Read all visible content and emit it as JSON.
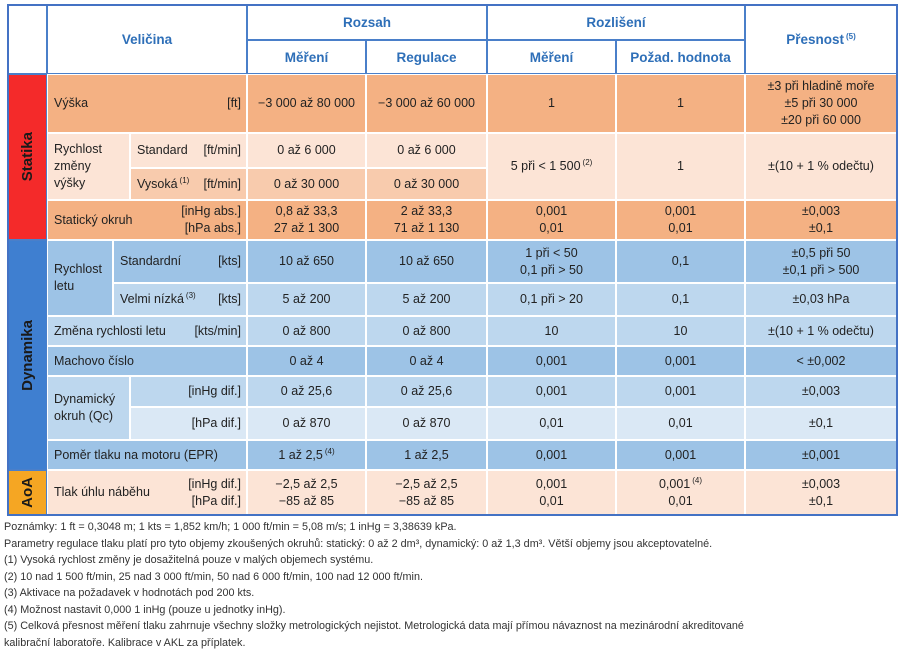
{
  "table": {
    "header": {
      "quantity": "Veličina",
      "range": "Rozsah",
      "resolution": "Rozlišení",
      "accuracy": "Přesnost",
      "accuracy_ref": "(5)",
      "range_measurement": "Měření",
      "range_regulation": "Regulace",
      "resolution_measurement": "Měření",
      "resolution_setpoint": "Požad. hodnota"
    },
    "groups": [
      "Statika",
      "Dynamika",
      "AoA"
    ],
    "rows": [
      {
        "label": "Výška",
        "unit": "[ft]",
        "measurement": "−3 000 až 80 000",
        "regulation": "−3 000 až 60 000",
        "resolution": "1",
        "setpoint": "1",
        "accuracy": [
          "±3 při hladině moře",
          "±5 při 30 000",
          "±20 při 60 000"
        ]
      },
      {
        "label": [
          "Rychlost",
          "změny výšky"
        ],
        "sub": [
          {
            "label": "Standard",
            "unit": "[ft/min]",
            "measurement": "0 až 6 000",
            "regulation": "0 až 6 000"
          },
          {
            "label": "Vysoká",
            "label_ref": "(1)",
            "unit": "[ft/min]",
            "measurement": "0 až 30 000",
            "regulation": "0 až 30 000"
          }
        ],
        "resolution": "5 při < 1 500",
        "resolution_ref": "(2)",
        "setpoint": "1",
        "accuracy": "±(10 + 1 % odečtu)"
      },
      {
        "label": "Statický okruh",
        "unit": [
          "[inHg abs.]",
          "[hPa abs.]"
        ],
        "measurement": [
          "0,8 až 33,3",
          "27 až 1 300"
        ],
        "regulation": [
          "2 až 33,3",
          "71 až 1 130"
        ],
        "resolution": [
          "0,001",
          "0,01"
        ],
        "setpoint": [
          "0,001",
          "0,01"
        ],
        "accuracy": [
          "±0,003",
          "±0,1"
        ]
      },
      {
        "label": [
          "Rychlost",
          "letu"
        ],
        "sub": [
          {
            "label": "Standardní",
            "unit": "[kts]",
            "measurement": "10 až 650",
            "regulation": "10 až 650",
            "resolution": [
              "1 při < 50",
              "0,1 při > 50"
            ],
            "setpoint": "0,1",
            "accuracy": [
              "±0,5 při 50",
              "±0,1 při > 500"
            ]
          },
          {
            "label": "Velmi nízká",
            "label_ref": "(3)",
            "unit": "[kts]",
            "measurement": "5 až 200",
            "regulation": "5 až 200",
            "resolution": "0,1 při > 20",
            "setpoint": "0,1",
            "accuracy": "±0,03 hPa"
          }
        ]
      },
      {
        "label": "Změna rychlosti letu",
        "unit": "[kts/min]",
        "measurement": "0 až 800",
        "regulation": "0 až 800",
        "resolution": "10",
        "setpoint": "10",
        "accuracy": "±(10 + 1 % odečtu)"
      },
      {
        "label": "Machovo číslo",
        "measurement": "0 až 4",
        "regulation": "0 až 4",
        "resolution": "0,001",
        "setpoint": "0,001",
        "accuracy": "< ±0,002"
      },
      {
        "label": [
          "Dynamický",
          "okruh (Qc)"
        ],
        "sub": [
          {
            "unit": "[inHg dif.]",
            "measurement": "0 až 25,6",
            "regulation": "0 až 25,6",
            "resolution": "0,001",
            "setpoint": "0,001",
            "accuracy": "±0,003"
          },
          {
            "unit": "[hPa dif.]",
            "measurement": "0 až 870",
            "regulation": "0 až 870",
            "resolution": "0,01",
            "setpoint": "0,01",
            "accuracy": "±0,1"
          }
        ]
      },
      {
        "label": "Poměr tlaku na motoru (EPR)",
        "measurement": "1 až 2,5",
        "measurement_ref": "(4)",
        "regulation": "1 až 2,5",
        "resolution": "0,001",
        "setpoint": "0,001",
        "accuracy": "±0,001"
      },
      {
        "label": "Tlak úhlu náběhu",
        "unit": [
          "[inHg dif.]",
          "[hPa dif.]"
        ],
        "measurement": [
          "−2,5 až 2,5",
          "−85 až 85"
        ],
        "regulation": [
          "−2,5 až 2,5",
          "−85 až 85"
        ],
        "resolution": [
          "0,001",
          "0,01"
        ],
        "setpoint": [
          "0,001",
          "0,01"
        ],
        "setpoint_ref": "(4)",
        "accuracy": [
          "±0,003",
          "±0,1"
        ]
      }
    ]
  },
  "notes": [
    "Poznámky: 1 ft = 0,3048 m; 1 kts = 1,852 km/h; 1 000 ft/min = 5,08 m/s; 1 inHg = 3,38639 kPa.",
    "Parametry regulace tlaku platí pro tyto objemy zkoušených okruhů: statický: 0 až 2 dm³, dynamický: 0 až 1,3 dm³. Větší objemy jsou akceptovatelné.",
    "(1) Vysoká rychlost změny je dosažitelná pouze v malých objemech systému.",
    "(2) 10 nad 1 500 ft/min, 25 nad 3 000 ft/min, 50 nad 6 000 ft/min, 100 nad 12 000 ft/min.",
    "(3) Aktivace na požadavek v hodnotách pod 200 kts.",
    "(4) Možnost nastavit 0,000 1 inHg (pouze u jednotky inHg).",
    "(5) Celková přesnost měření tlaku zahrnuje všechny složky metrologických nejistot. Metrologická data mají přímou návaznost na mezinárodní akreditované kalibrační laboratoře. Kalibrace v AKL za příplatek."
  ]
}
